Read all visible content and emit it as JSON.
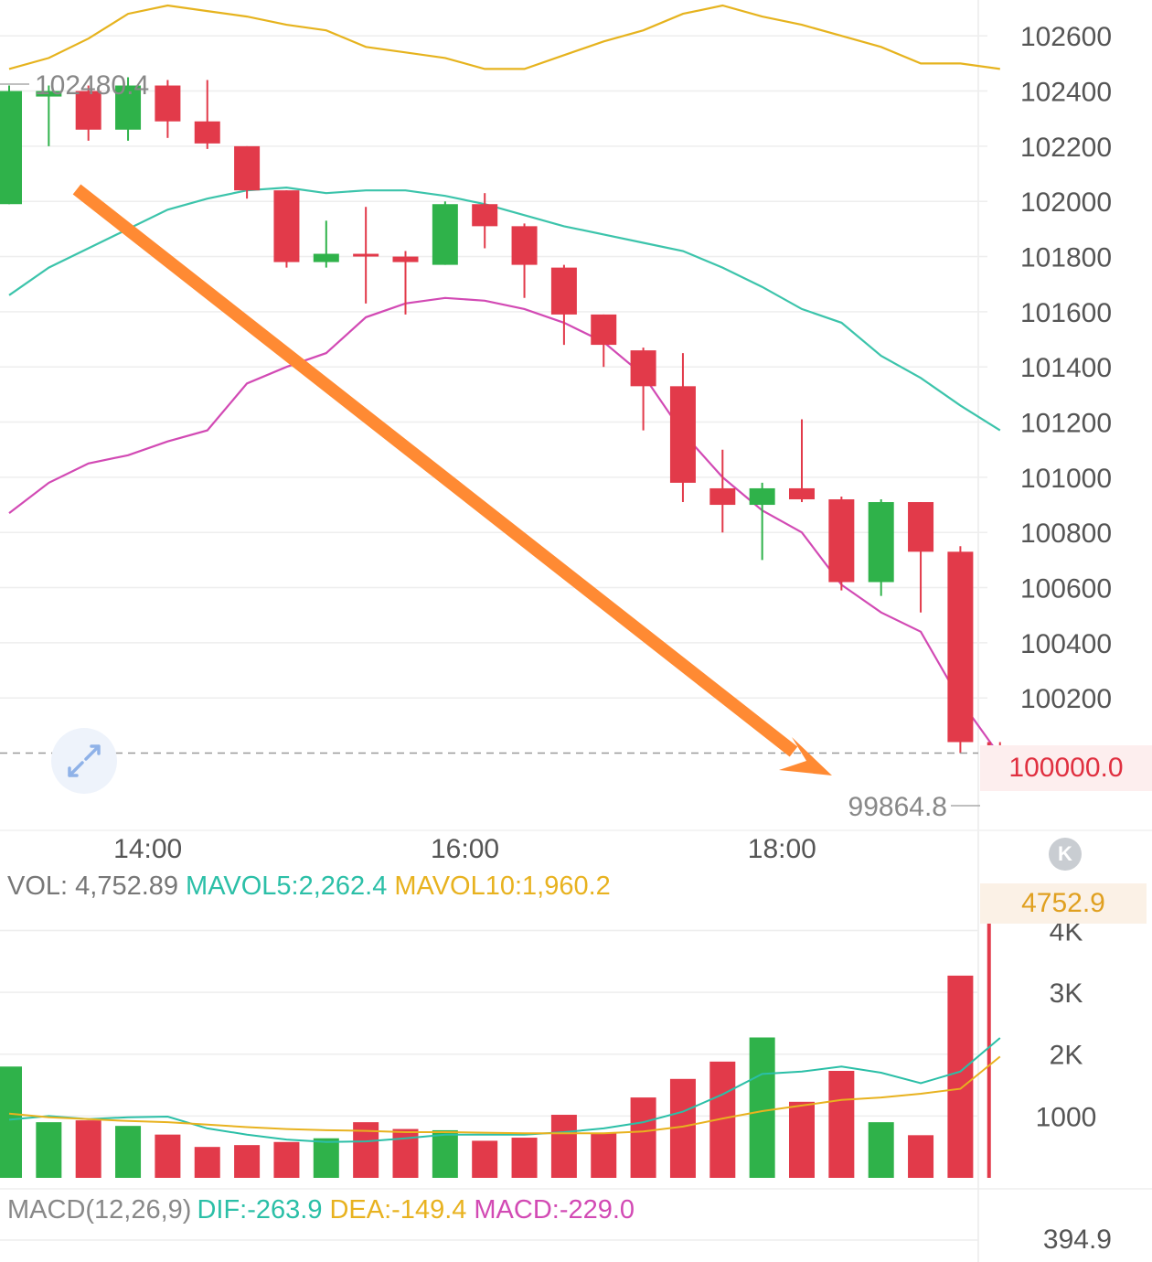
{
  "chart_data": {
    "type": "candlestick",
    "price_axis": {
      "ticks": [
        102600,
        102400,
        102200,
        102000,
        101800,
        101600,
        101400,
        101200,
        101000,
        100800,
        100600,
        100400,
        100200
      ],
      "range": [
        99730,
        102730
      ]
    },
    "time_labels": [
      {
        "label": "14:00",
        "index": 3.5
      },
      {
        "label": "16:00",
        "index": 11.5
      },
      {
        "label": "18:00",
        "index": 19.5
      }
    ],
    "max_label": "102480.4",
    "min_label": "99864.8",
    "current_price": "100000.0",
    "current_price_value": 100000,
    "candles": [
      {
        "o": 101990,
        "h": 102420,
        "l": 101990,
        "c": 102400
      },
      {
        "o": 102380,
        "h": 102420,
        "l": 102200,
        "c": 102400
      },
      {
        "o": 102400,
        "h": 102420,
        "l": 102220,
        "c": 102260
      },
      {
        "o": 102260,
        "h": 102450,
        "l": 102220,
        "c": 102420
      },
      {
        "o": 102420,
        "h": 102440,
        "l": 102230,
        "c": 102290
      },
      {
        "o": 102290,
        "h": 102440,
        "l": 102190,
        "c": 102210
      },
      {
        "o": 102200,
        "h": 102200,
        "l": 102010,
        "c": 102040
      },
      {
        "o": 102040,
        "h": 102040,
        "l": 101760,
        "c": 101780
      },
      {
        "o": 101780,
        "h": 101930,
        "l": 101760,
        "c": 101810
      },
      {
        "o": 101810,
        "h": 101980,
        "l": 101630,
        "c": 101800
      },
      {
        "o": 101800,
        "h": 101820,
        "l": 101590,
        "c": 101780
      },
      {
        "o": 101770,
        "h": 102000,
        "l": 101770,
        "c": 101990
      },
      {
        "o": 101990,
        "h": 102030,
        "l": 101830,
        "c": 101910
      },
      {
        "o": 101910,
        "h": 101920,
        "l": 101650,
        "c": 101770
      },
      {
        "o": 101760,
        "h": 101770,
        "l": 101480,
        "c": 101590
      },
      {
        "o": 101590,
        "h": 101590,
        "l": 101400,
        "c": 101480
      },
      {
        "o": 101460,
        "h": 101470,
        "l": 101170,
        "c": 101330
      },
      {
        "o": 101330,
        "h": 101450,
        "l": 100910,
        "c": 100980
      },
      {
        "o": 100960,
        "h": 101100,
        "l": 100800,
        "c": 100900
      },
      {
        "o": 100900,
        "h": 100980,
        "l": 100700,
        "c": 100960
      },
      {
        "o": 100960,
        "h": 101210,
        "l": 100910,
        "c": 100920
      },
      {
        "o": 100920,
        "h": 100930,
        "l": 100590,
        "c": 100620
      },
      {
        "o": 100620,
        "h": 100920,
        "l": 100570,
        "c": 100910
      },
      {
        "o": 100910,
        "h": 100910,
        "l": 100510,
        "c": 100730
      },
      {
        "o": 100730,
        "h": 100750,
        "l": 100000,
        "c": 100040
      },
      {
        "o": 100040,
        "h": 100040,
        "l": 100000,
        "c": 100000
      }
    ],
    "bollinger": {
      "upper": [
        102480,
        102520,
        102590,
        102680,
        102710,
        102690,
        102670,
        102640,
        102620,
        102560,
        102540,
        102520,
        102480,
        102480,
        102530,
        102580,
        102620,
        102680,
        102710,
        102670,
        102640,
        102600,
        102560,
        102500,
        102500,
        102480
      ],
      "middle": [
        101660,
        101760,
        101830,
        101900,
        101970,
        102010,
        102040,
        102050,
        102030,
        102040,
        102040,
        102020,
        101990,
        101950,
        101910,
        101880,
        101850,
        101820,
        101760,
        101690,
        101610,
        101560,
        101440,
        101360,
        101260,
        101170
      ],
      "lower": [
        100870,
        100980,
        101050,
        101080,
        101130,
        101170,
        101340,
        101400,
        101450,
        101580,
        101630,
        101650,
        101640,
        101610,
        101560,
        101490,
        101370,
        101160,
        101000,
        100880,
        100800,
        100610,
        100510,
        100440,
        100190,
        99990
      ]
    },
    "volume": {
      "label": "VOL: 4,752.89",
      "mavol5_label": "MAVOL5:2,262.4",
      "mavol10_label": "MAVOL10:1,960.2",
      "current_tag": "4752.9",
      "axis_ticks": [
        "4K",
        "3K",
        "2K",
        "1000"
      ],
      "axis_values": [
        4000,
        3000,
        2000,
        1000
      ],
      "range": [
        0,
        4850
      ],
      "bars": [
        1800,
        900,
        930,
        840,
        700,
        500,
        530,
        580,
        640,
        900,
        790,
        770,
        600,
        650,
        1020,
        720,
        1300,
        1600,
        1880,
        2270,
        1230,
        1730,
        900,
        690,
        3270,
        4752.89
      ],
      "mavol5": [
        940,
        1000,
        950,
        980,
        990,
        800,
        700,
        620,
        580,
        590,
        640,
        700,
        700,
        700,
        740,
        800,
        900,
        1070,
        1350,
        1680,
        1720,
        1800,
        1700,
        1530,
        1720,
        2262.4
      ],
      "mavol10": [
        1040,
        980,
        950,
        920,
        900,
        860,
        820,
        790,
        770,
        760,
        740,
        740,
        730,
        720,
        720,
        720,
        750,
        830,
        960,
        1080,
        1170,
        1260,
        1300,
        1360,
        1440,
        1960.2
      ]
    },
    "macd": {
      "label": "MACD(12,26,9)",
      "dif_label": "DIF:-263.9",
      "dea_label": "DEA:-149.4",
      "macd_label": "MACD:-229.0",
      "axis_top": "394.9"
    }
  },
  "colors": {
    "up": "#2fb24a",
    "down": "#e23a4a",
    "upper_band": "#e6b31e",
    "middle_band": "#3cc4ab",
    "lower_band": "#d24ab4",
    "arrow": "#ff8a33",
    "grid": "#eeeeee",
    "mavol5": "#2bbfa7",
    "mavol10": "#e8b21f",
    "dif": "#2bbfa7",
    "dea": "#e8b21f",
    "macd": "#d24ab4"
  }
}
